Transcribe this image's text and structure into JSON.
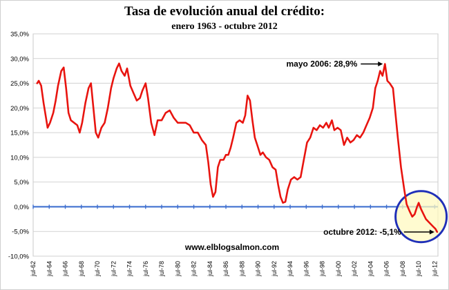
{
  "chart_data": {
    "type": "line",
    "title": "Tasa de evolución anual del crédito:",
    "subtitle": "enero 1963 - octubre 2012",
    "ylim": [
      -10,
      35
    ],
    "yticks": [
      -10,
      -5,
      0,
      5,
      10,
      15,
      20,
      25,
      30,
      35
    ],
    "ytick_labels": [
      "-10,0%",
      "-5,0%",
      "0,0%",
      "5,0%",
      "10,0%",
      "15,0%",
      "20,0%",
      "25,0%",
      "30,0%",
      "35,0%"
    ],
    "xlim": [
      1962.5,
      2012.9
    ],
    "xticks": [
      1962.5,
      1964.5,
      1966.5,
      1968.5,
      1970.5,
      1972.5,
      1974.5,
      1976.5,
      1978.5,
      1980.5,
      1982.5,
      1984.5,
      1986.5,
      1988.5,
      1990.5,
      1992.5,
      1994.5,
      1996.5,
      1998.5,
      2000.5,
      2002.5,
      2004.5,
      2006.5,
      2008.5,
      2010.5,
      2012.5
    ],
    "xtick_labels": [
      "jul-62",
      "jul-64",
      "jul-66",
      "jul-68",
      "jul-70",
      "jul-72",
      "jul-74",
      "jul-76",
      "jul-78",
      "jul-80",
      "jul-82",
      "jul-84",
      "jul-86",
      "jul-88",
      "jul-90",
      "jul-92",
      "jul-94",
      "jul-96",
      "jul-98",
      "jul-00",
      "jul-02",
      "jul-04",
      "jul-06",
      "jul-08",
      "jul-10",
      "jul-12"
    ],
    "grid": "horizontal",
    "series": [
      {
        "color": "#e8140f",
        "points": [
          [
            1963.0,
            25.0
          ],
          [
            1963.2,
            25.5
          ],
          [
            1963.5,
            24.5
          ],
          [
            1963.8,
            21.0
          ],
          [
            1964.1,
            18.0
          ],
          [
            1964.3,
            16.0
          ],
          [
            1964.6,
            17.0
          ],
          [
            1965.0,
            19.0
          ],
          [
            1965.3,
            21.5
          ],
          [
            1965.6,
            24.5
          ],
          [
            1966.0,
            27.5
          ],
          [
            1966.3,
            28.2
          ],
          [
            1966.6,
            24.0
          ],
          [
            1966.9,
            19.0
          ],
          [
            1967.2,
            17.5
          ],
          [
            1967.6,
            17.0
          ],
          [
            1968.0,
            16.5
          ],
          [
            1968.3,
            15.0
          ],
          [
            1968.6,
            17.0
          ],
          [
            1969.0,
            21.0
          ],
          [
            1969.4,
            24.0
          ],
          [
            1969.7,
            25.0
          ],
          [
            1970.0,
            20.0
          ],
          [
            1970.3,
            15.0
          ],
          [
            1970.6,
            14.0
          ],
          [
            1971.0,
            16.0
          ],
          [
            1971.4,
            17.0
          ],
          [
            1971.8,
            20.0
          ],
          [
            1972.2,
            24.0
          ],
          [
            1972.5,
            26.0
          ],
          [
            1972.9,
            28.0
          ],
          [
            1973.2,
            29.0
          ],
          [
            1973.5,
            27.5
          ],
          [
            1973.9,
            26.5
          ],
          [
            1974.2,
            28.0
          ],
          [
            1974.6,
            24.5
          ],
          [
            1975.0,
            23.0
          ],
          [
            1975.4,
            21.5
          ],
          [
            1975.8,
            22.0
          ],
          [
            1976.1,
            23.5
          ],
          [
            1976.5,
            25.0
          ],
          [
            1976.8,
            22.0
          ],
          [
            1977.2,
            17.0
          ],
          [
            1977.6,
            14.5
          ],
          [
            1978.0,
            17.5
          ],
          [
            1978.5,
            17.5
          ],
          [
            1979.0,
            19.0
          ],
          [
            1979.5,
            19.5
          ],
          [
            1980.0,
            18.0
          ],
          [
            1980.5,
            17.0
          ],
          [
            1981.0,
            17.0
          ],
          [
            1981.5,
            17.0
          ],
          [
            1982.0,
            16.5
          ],
          [
            1982.5,
            15.0
          ],
          [
            1983.0,
            15.0
          ],
          [
            1983.5,
            13.5
          ],
          [
            1984.0,
            12.5
          ],
          [
            1984.3,
            9.0
          ],
          [
            1984.6,
            4.5
          ],
          [
            1984.9,
            2.0
          ],
          [
            1985.2,
            3.0
          ],
          [
            1985.5,
            8.0
          ],
          [
            1985.8,
            9.5
          ],
          [
            1986.2,
            9.5
          ],
          [
            1986.5,
            10.5
          ],
          [
            1986.8,
            10.5
          ],
          [
            1987.1,
            12.0
          ],
          [
            1987.4,
            14.0
          ],
          [
            1987.8,
            17.0
          ],
          [
            1988.2,
            17.5
          ],
          [
            1988.6,
            17.0
          ],
          [
            1988.9,
            18.5
          ],
          [
            1989.2,
            22.5
          ],
          [
            1989.5,
            21.5
          ],
          [
            1989.8,
            17.5
          ],
          [
            1990.1,
            14.0
          ],
          [
            1990.4,
            12.5
          ],
          [
            1990.8,
            10.5
          ],
          [
            1991.1,
            11.0
          ],
          [
            1991.5,
            10.0
          ],
          [
            1991.9,
            9.5
          ],
          [
            1992.3,
            8.0
          ],
          [
            1992.7,
            7.5
          ],
          [
            1993.0,
            4.5
          ],
          [
            1993.3,
            2.0
          ],
          [
            1993.6,
            0.8
          ],
          [
            1993.9,
            1.0
          ],
          [
            1994.2,
            3.5
          ],
          [
            1994.6,
            5.5
          ],
          [
            1995.0,
            6.0
          ],
          [
            1995.4,
            5.5
          ],
          [
            1995.8,
            6.0
          ],
          [
            1996.2,
            9.5
          ],
          [
            1996.6,
            13.0
          ],
          [
            1997.0,
            14.0
          ],
          [
            1997.4,
            16.0
          ],
          [
            1997.8,
            15.5
          ],
          [
            1998.2,
            16.5
          ],
          [
            1998.6,
            16.0
          ],
          [
            1999.0,
            17.0
          ],
          [
            1999.3,
            16.0
          ],
          [
            1999.7,
            17.5
          ],
          [
            2000.0,
            15.5
          ],
          [
            2000.4,
            16.0
          ],
          [
            2000.8,
            15.5
          ],
          [
            2001.2,
            12.5
          ],
          [
            2001.6,
            14.0
          ],
          [
            2002.0,
            13.0
          ],
          [
            2002.4,
            13.5
          ],
          [
            2002.8,
            14.5
          ],
          [
            2003.2,
            14.0
          ],
          [
            2003.6,
            15.0
          ],
          [
            2004.0,
            16.5
          ],
          [
            2004.4,
            18.0
          ],
          [
            2004.8,
            20.0
          ],
          [
            2005.1,
            24.0
          ],
          [
            2005.4,
            25.5
          ],
          [
            2005.7,
            27.5
          ],
          [
            2006.0,
            26.5
          ],
          [
            2006.3,
            28.9
          ],
          [
            2006.6,
            25.5
          ],
          [
            2006.9,
            25.0
          ],
          [
            2007.3,
            24.0
          ],
          [
            2007.6,
            19.0
          ],
          [
            2007.9,
            14.0
          ],
          [
            2008.3,
            8.0
          ],
          [
            2008.7,
            3.5
          ],
          [
            2009.0,
            0.5
          ],
          [
            2009.4,
            -1.0
          ],
          [
            2009.7,
            -2.0
          ],
          [
            2010.0,
            -1.5
          ],
          [
            2010.3,
            0.0
          ],
          [
            2010.5,
            0.8
          ],
          [
            2010.8,
            -0.5
          ],
          [
            2011.1,
            -1.5
          ],
          [
            2011.4,
            -2.5
          ],
          [
            2011.7,
            -3.0
          ],
          [
            2012.0,
            -3.5
          ],
          [
            2012.3,
            -4.0
          ],
          [
            2012.6,
            -4.5
          ],
          [
            2012.8,
            -5.1
          ]
        ]
      }
    ],
    "zero_line": {
      "y": 0,
      "color": "#3f6fcf"
    },
    "highlight_circle": {
      "cx": 2010.8,
      "cy": -2.0,
      "color": "#1f2fb8",
      "fill": "#fff9c0"
    },
    "annotations": [
      {
        "text": "mayo 2006: 28,9%",
        "x": 2006.3,
        "y": 28.9
      },
      {
        "text": "octubre 2012: -5,1%",
        "x": 2012.8,
        "y": -5.1
      }
    ],
    "source_text": "www.elblogsalmon.com"
  }
}
